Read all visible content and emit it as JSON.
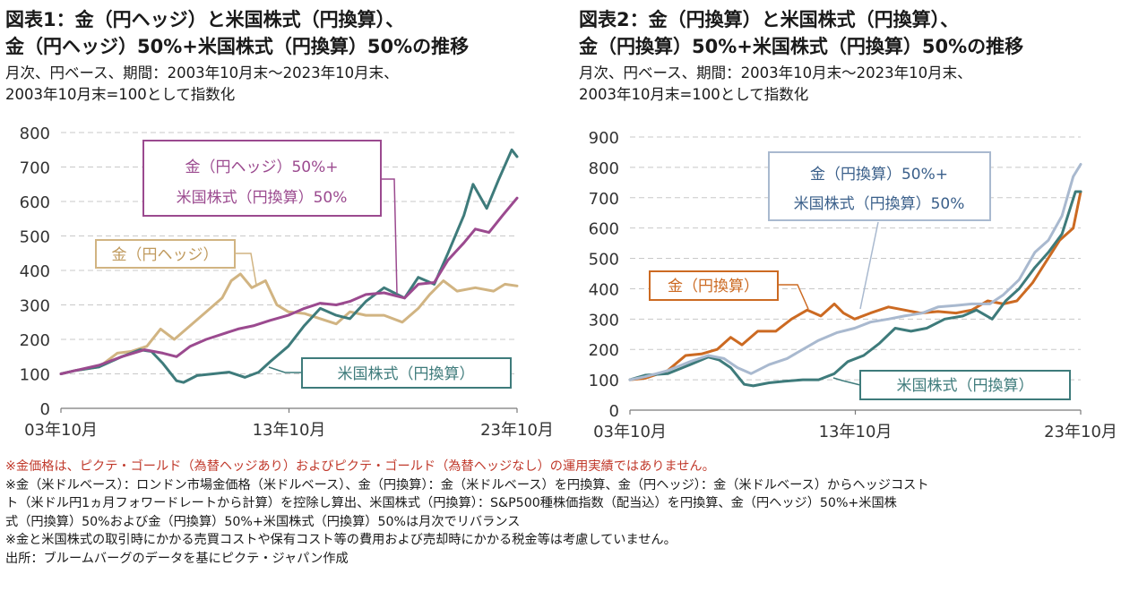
{
  "colors": {
    "gold": "#d1b482",
    "gold_jpy": "#cc6a22",
    "us": "#3e7b7b",
    "mix_left": "#9b4a8f",
    "mix_right": "#a9b9cf",
    "note_red": "#c0392b",
    "label_blue": "#3a5f8a"
  },
  "left": {
    "title1": "図表1：金（円ヘッジ）と米国株式（円換算）、",
    "title2": "金（円ヘッジ）50%+米国株式（円換算）50%の推移",
    "sub1": "月次、円ベース、期間：2003年10月末～2023年10月末、",
    "sub2": "2003年10月末=100として指数化",
    "callout_mix1": "金（円ヘッジ）50%+",
    "callout_mix2": "米国株式（円換算）50%",
    "callout_gold": "金（円ヘッジ）",
    "callout_us": "米国株式（円換算）"
  },
  "right": {
    "title1": "図表2：金（円換算）と米国株式（円換算）、",
    "title2": "金（円換算）50%+米国株式（円換算）50%の推移",
    "sub1": "月次、円ベース、期間：2003年10月末～2023年10月末、",
    "sub2": "2003年10月末=100として指数化",
    "callout_mix1": "金（円換算）50%+",
    "callout_mix2": "米国株式（円換算）50%",
    "callout_gold": "金（円換算）",
    "callout_us": "米国株式（円換算）"
  },
  "notes": [
    "※金価格は、ピクテ・ゴールド（為替ヘッジあり）およびピクテ・ゴールド（為替ヘッジなし）の運用実績ではありません。",
    "※金（米ドルベース）：ロンドン市場金価格（米ドルベース）、金（円換算）：金（米ドルベース）を円換算、金（円ヘッジ）：金（米ドルベース）からヘッジコスト",
    "ト（米ドル円1ヵ月フォワードレートから計算）を控除し算出、米国株式（円換算）：S&P500種株価指数（配当込）を円換算、金（円ヘッジ）50%+米国株",
    "式（円換算）50%および金（円換算）50%+米国株式（円換算）50%は月次でリバランス",
    "※金と米国株式の取引時にかかる売買コストや保有コスト等の費用および売却時にかかる税金等は考慮していません。",
    "出所：ブルームバーグのデータを基にピクテ・ジャパン作成"
  ],
  "chart_data": [
    {
      "type": "line",
      "x_ticks": [
        "03年10月",
        "13年10月",
        "23年10月"
      ],
      "x_range": [
        "2003-10",
        "2023-10"
      ],
      "ylim": [
        0,
        800
      ],
      "y_ticks": [
        0,
        100,
        200,
        300,
        400,
        500,
        600,
        700,
        800
      ],
      "series": [
        {
          "name": "金（円ヘッジ）",
          "color": "#d1b482",
          "x": [
            2003.83,
            2004.5,
            2005.5,
            2006.3,
            2006.9,
            2007.6,
            2008.2,
            2008.8,
            2009.5,
            2010.2,
            2010.9,
            2011.3,
            2011.7,
            2012.2,
            2012.8,
            2013.3,
            2013.8,
            2014.5,
            2015.2,
            2015.9,
            2016.5,
            2017.2,
            2018.0,
            2018.8,
            2019.5,
            2020.0,
            2020.6,
            2021.2,
            2022.0,
            2022.8,
            2023.3,
            2023.83
          ],
          "values": [
            100,
            110,
            120,
            160,
            165,
            180,
            230,
            200,
            240,
            280,
            320,
            370,
            390,
            350,
            370,
            300,
            280,
            275,
            260,
            245,
            280,
            270,
            270,
            250,
            290,
            330,
            370,
            340,
            350,
            340,
            360,
            355
          ]
        },
        {
          "name": "米国株式（円換算）",
          "color": "#3e7b7b",
          "x": [
            2003.83,
            2004.5,
            2005.5,
            2006.5,
            2007.3,
            2007.8,
            2008.3,
            2008.9,
            2009.2,
            2009.8,
            2010.5,
            2011.2,
            2011.9,
            2012.5,
            2013.0,
            2013.8,
            2014.5,
            2015.2,
            2015.9,
            2016.5,
            2017.2,
            2018.0,
            2018.9,
            2019.5,
            2020.2,
            2020.8,
            2021.5,
            2021.9,
            2022.5,
            2023.0,
            2023.6,
            2023.83
          ],
          "values": [
            100,
            110,
            120,
            150,
            170,
            165,
            130,
            80,
            75,
            95,
            100,
            105,
            90,
            105,
            135,
            180,
            240,
            290,
            270,
            260,
            310,
            350,
            320,
            380,
            360,
            450,
            560,
            650,
            580,
            660,
            750,
            730
          ]
        },
        {
          "name": "金（円ヘッジ）50%+米国株式（円換算）50%",
          "color": "#9b4a8f",
          "x": [
            2003.83,
            2004.5,
            2005.5,
            2006.5,
            2007.5,
            2008.3,
            2008.9,
            2009.5,
            2010.2,
            2010.9,
            2011.6,
            2012.3,
            2013.0,
            2013.8,
            2014.5,
            2015.2,
            2015.9,
            2016.5,
            2017.2,
            2018.0,
            2018.9,
            2019.5,
            2020.2,
            2020.8,
            2021.5,
            2022.0,
            2022.6,
            2023.2,
            2023.83
          ],
          "values": [
            100,
            110,
            125,
            150,
            170,
            160,
            150,
            180,
            200,
            215,
            230,
            240,
            255,
            270,
            290,
            305,
            300,
            310,
            330,
            335,
            320,
            360,
            365,
            430,
            480,
            520,
            510,
            560,
            610
          ]
        }
      ]
    },
    {
      "type": "line",
      "x_ticks": [
        "03年10月",
        "13年10月",
        "23年10月"
      ],
      "x_range": [
        "2003-10",
        "2023-10"
      ],
      "ylim": [
        0,
        900
      ],
      "y_ticks": [
        0,
        100,
        200,
        300,
        400,
        500,
        600,
        700,
        800,
        900
      ],
      "series": [
        {
          "name": "金（円換算）",
          "color": "#cc6a22",
          "x": [
            2003.83,
            2004.5,
            2005.5,
            2006.3,
            2007.0,
            2007.7,
            2008.3,
            2008.8,
            2009.5,
            2010.3,
            2011.0,
            2011.7,
            2012.3,
            2012.9,
            2013.3,
            2013.8,
            2014.5,
            2015.3,
            2016.0,
            2016.7,
            2017.5,
            2018.3,
            2019.0,
            2019.7,
            2020.4,
            2021.0,
            2021.7,
            2022.3,
            2022.9,
            2023.5,
            2023.83
          ],
          "values": [
            100,
            105,
            130,
            180,
            185,
            200,
            240,
            215,
            260,
            260,
            300,
            330,
            310,
            350,
            320,
            300,
            320,
            340,
            330,
            320,
            325,
            320,
            330,
            360,
            350,
            360,
            420,
            490,
            560,
            600,
            720
          ]
        },
        {
          "name": "米国株式（円換算）",
          "color": "#3e7b7b",
          "x": [
            2003.83,
            2004.5,
            2005.5,
            2006.5,
            2007.3,
            2007.8,
            2008.3,
            2008.9,
            2009.3,
            2010.0,
            2010.7,
            2011.5,
            2012.2,
            2012.9,
            2013.5,
            2014.2,
            2014.9,
            2015.6,
            2016.3,
            2017.0,
            2017.8,
            2018.6,
            2019.2,
            2019.9,
            2020.5,
            2021.1,
            2021.8,
            2022.4,
            2023.0,
            2023.6,
            2023.83
          ],
          "values": [
            100,
            115,
            120,
            150,
            175,
            165,
            140,
            85,
            80,
            90,
            95,
            100,
            100,
            120,
            160,
            180,
            220,
            270,
            260,
            270,
            300,
            310,
            330,
            300,
            360,
            400,
            470,
            520,
            580,
            720,
            720
          ]
        },
        {
          "name": "金（円換算）50%+米国株式（円換算）50%",
          "color": "#a9b9cf",
          "x": [
            2003.83,
            2004.5,
            2005.5,
            2006.5,
            2007.3,
            2008.0,
            2008.6,
            2009.2,
            2010.0,
            2010.8,
            2011.5,
            2012.2,
            2013.0,
            2013.8,
            2014.5,
            2015.3,
            2016.0,
            2016.8,
            2017.5,
            2018.3,
            2019.0,
            2019.8,
            2020.4,
            2021.1,
            2021.8,
            2022.4,
            2023.0,
            2023.5,
            2023.83
          ],
          "values": [
            100,
            110,
            130,
            160,
            180,
            170,
            140,
            120,
            150,
            170,
            200,
            230,
            255,
            270,
            290,
            300,
            310,
            320,
            340,
            345,
            350,
            350,
            380,
            430,
            520,
            560,
            640,
            770,
            810
          ]
        }
      ]
    }
  ]
}
